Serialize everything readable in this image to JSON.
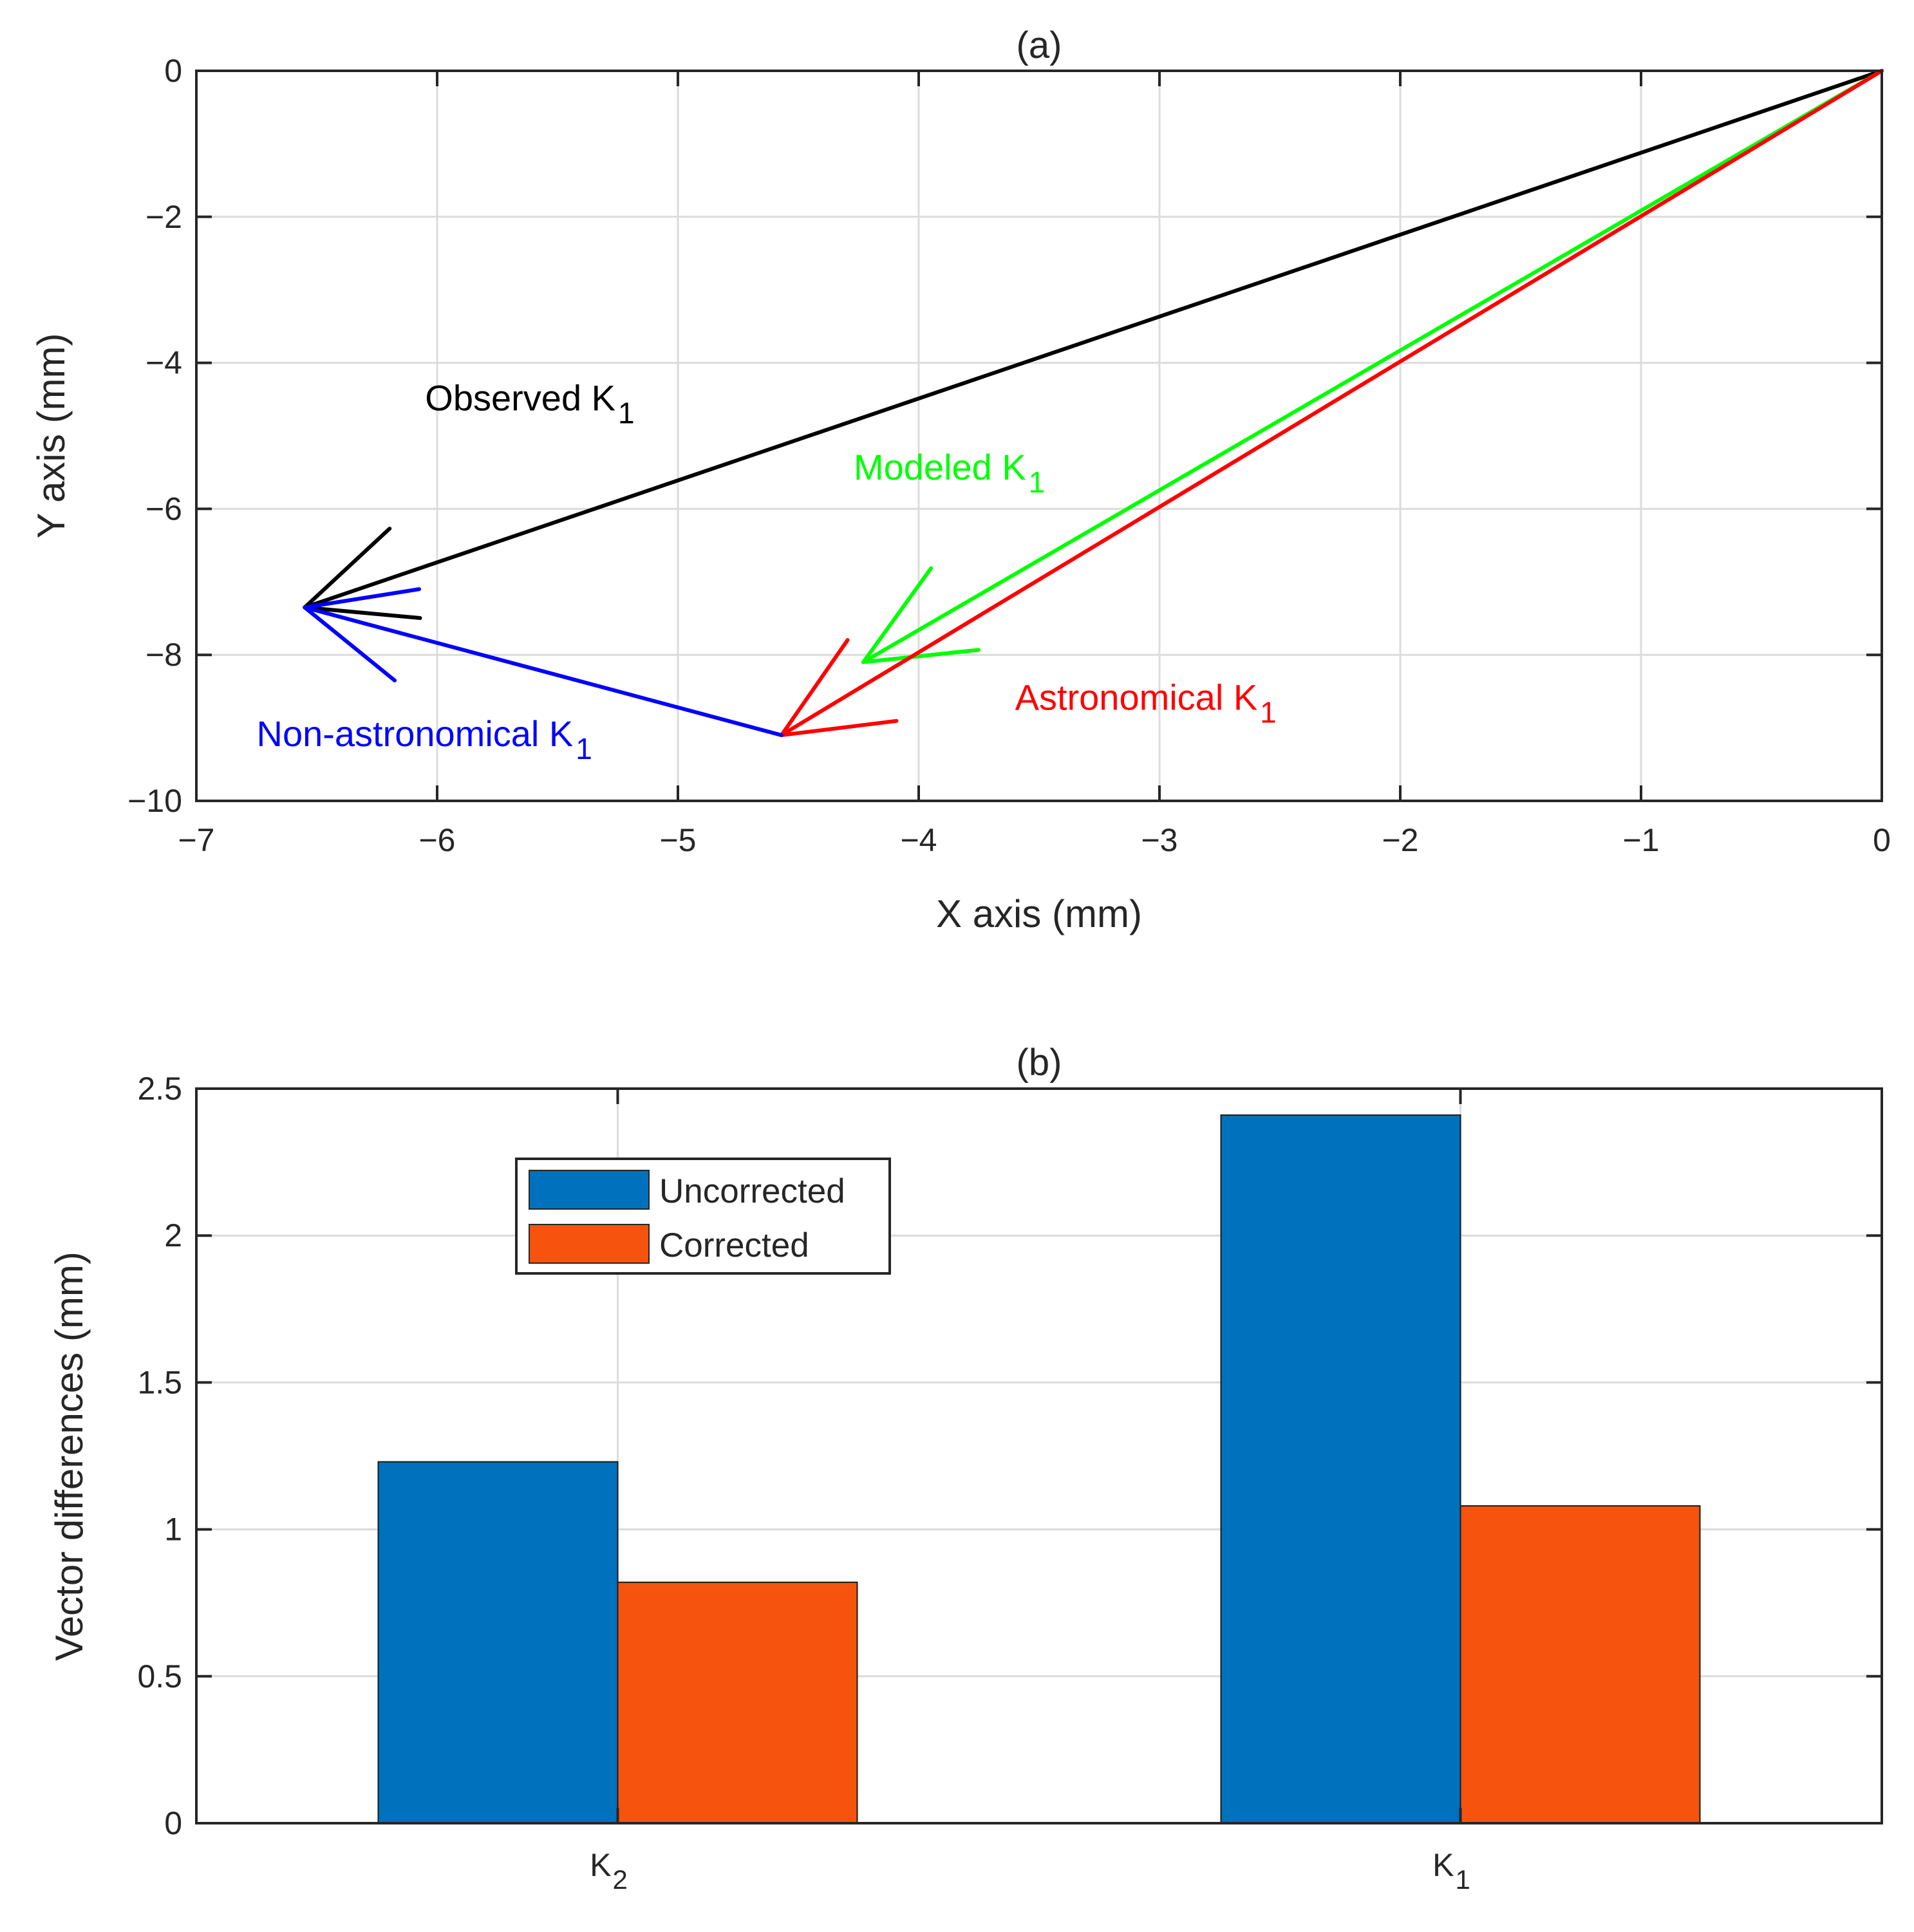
{
  "chart_data": [
    {
      "type": "vector",
      "title": "(a)",
      "xlabel": "X axis (mm)",
      "ylabel": "Y axis (mm)",
      "xlim": [
        -7,
        0
      ],
      "ylim": [
        -10,
        0
      ],
      "xticks": [
        -7,
        -6,
        -5,
        -4,
        -3,
        -2,
        -1,
        0
      ],
      "yticks": [
        -10,
        -8,
        -6,
        -4,
        -2,
        0
      ],
      "xtick_labels": [
        "−7",
        "−6",
        "−5",
        "−4",
        "−3",
        "−2",
        "−1",
        "0"
      ],
      "ytick_labels": [
        "−10",
        "−8",
        "−6",
        "−4",
        "−2",
        "0"
      ],
      "grid": true,
      "series": [
        {
          "name": "Observed",
          "sub": "1",
          "color": "#000000",
          "from": [
            0,
            0
          ],
          "to": [
            -6.55,
            -7.35
          ]
        },
        {
          "name": "Modeled",
          "sub": "1",
          "color": "#00ff00",
          "from": [
            0,
            0
          ],
          "to": [
            -4.23,
            -8.1
          ]
        },
        {
          "name": "Astronomical",
          "sub": "1",
          "color": "#ff0000",
          "from": [
            0,
            0
          ],
          "to": [
            -4.57,
            -9.1
          ]
        },
        {
          "name": "Non-astronomical",
          "sub": "1",
          "color": "#0000ff",
          "from": [
            -4.57,
            -9.1
          ],
          "to": [
            -6.55,
            -7.35
          ]
        }
      ],
      "annotations": [
        {
          "text": "Observed K",
          "sub": "1",
          "color": "#000000",
          "x": -6.05,
          "y": -4.65
        },
        {
          "text": "Modeled K",
          "sub": "1",
          "color": "#00ff00",
          "x": -4.27,
          "y": -5.6
        },
        {
          "text": "Astronomical K",
          "sub": "1",
          "color": "#ff0000",
          "x": -3.6,
          "y": -8.75
        },
        {
          "text": "Non-astronomical K",
          "sub": "1",
          "color": "#0000ff",
          "x": -6.75,
          "y": -9.25
        }
      ]
    },
    {
      "type": "bar",
      "title": "(b)",
      "xlabel": "",
      "ylabel": "Vector differences (mm)",
      "ylim": [
        0,
        2.5
      ],
      "yticks": [
        0,
        0.5,
        1,
        1.5,
        2,
        2.5
      ],
      "ytick_labels": [
        "0",
        "0.5",
        "1",
        "1.5",
        "2",
        "2.5"
      ],
      "grid": true,
      "categories": [
        {
          "base": "K",
          "sub": "2"
        },
        {
          "base": "K",
          "sub": "1"
        }
      ],
      "series": [
        {
          "name": "Uncorrected",
          "color": "#0072bd",
          "values": [
            1.23,
            2.41
          ]
        },
        {
          "name": "Corrected",
          "color": "#f5530e",
          "values": [
            0.82,
            1.08
          ]
        }
      ],
      "legend": "top-left-center"
    }
  ]
}
